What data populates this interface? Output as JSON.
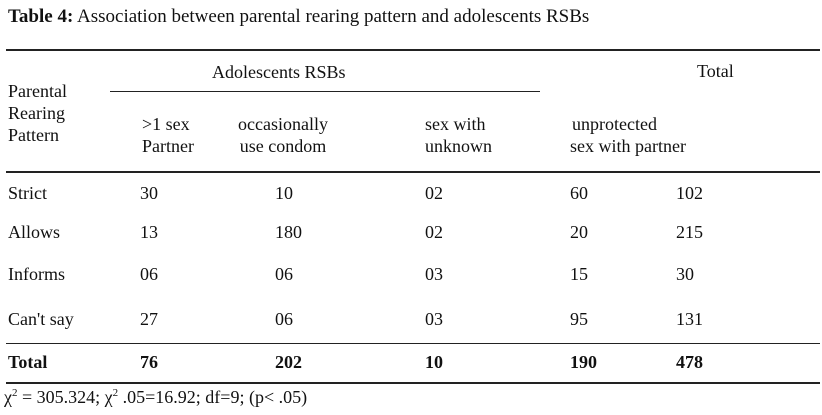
{
  "caption": {
    "label": "Table 4:",
    "text": "Association between parental rearing pattern and adolescents RSBs"
  },
  "header": {
    "row_header_lines": [
      "Parental",
      "Rearing",
      "Pattern"
    ],
    "group_label": "Adolescents RSBs",
    "total_label": "Total",
    "columns": [
      {
        "lines": [
          ">1 sex",
          "Partner"
        ]
      },
      {
        "lines": [
          "occasionally",
          "use condom"
        ]
      },
      {
        "lines": [
          "sex with",
          "unknown"
        ]
      },
      {
        "lines": [
          "unprotected",
          "sex with partner"
        ]
      }
    ]
  },
  "rows": [
    {
      "label": "Strict",
      "values": [
        "30",
        "10",
        "02",
        "60",
        "102"
      ]
    },
    {
      "label": "Allows",
      "values": [
        "13",
        "180",
        "02",
        "20",
        "215"
      ]
    },
    {
      "label": "Informs",
      "values": [
        "06",
        "06",
        "03",
        "15",
        "30"
      ]
    },
    {
      "label": "Can't say",
      "values": [
        "27",
        "06",
        "03",
        "95",
        "131"
      ]
    }
  ],
  "total_row": {
    "label": "Total",
    "values": [
      "76",
      "202",
      "10",
      "190",
      "478"
    ]
  },
  "footnote": {
    "chi_symbol": "χ",
    "sup1": "2",
    "part1": " = 305.324; ",
    "sup2": "2",
    "part2": " .05=16.92; df=9; (p< .05)"
  }
}
